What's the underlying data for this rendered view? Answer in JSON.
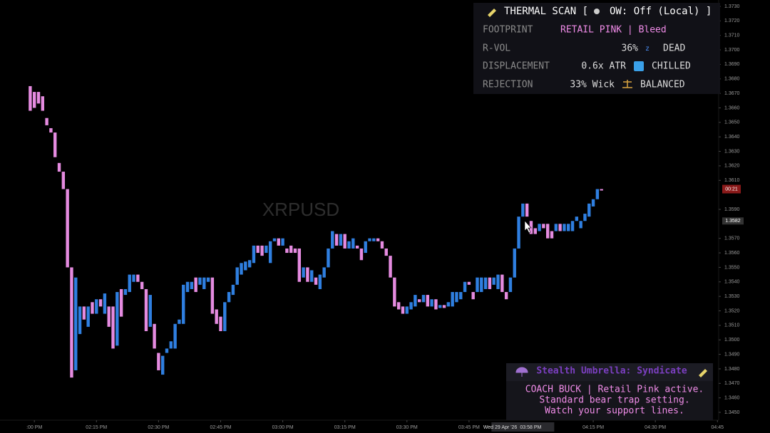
{
  "chart_data": {
    "type": "candlestick",
    "watermark": "XRPUSD",
    "up_color": "#2f7fe0",
    "down_color": "#e58be0",
    "x": [
      -1,
      0,
      1,
      2,
      3,
      4,
      5,
      6,
      7,
      8,
      9,
      10,
      11,
      12,
      13,
      14,
      15,
      16,
      17,
      18,
      19,
      20,
      21,
      22,
      23,
      24,
      25,
      26,
      27,
      28,
      29,
      30,
      31,
      32,
      33,
      34,
      35,
      36,
      37,
      38,
      39,
      40,
      41,
      42,
      43,
      44,
      45,
      46,
      47,
      48,
      49,
      50,
      51,
      52,
      53,
      54,
      55,
      56,
      57,
      58,
      59,
      60,
      61,
      62,
      63,
      64,
      65,
      66,
      67,
      68,
      69,
      70,
      71,
      72,
      73,
      74,
      75,
      76,
      77,
      78,
      79,
      80,
      81,
      82,
      83,
      84,
      85,
      86,
      87,
      88,
      89,
      90,
      91,
      92,
      93,
      94,
      95,
      96,
      97,
      98,
      99,
      100,
      101,
      102,
      103,
      104,
      105,
      106,
      107,
      108,
      109,
      110,
      111,
      112,
      113,
      114,
      115,
      116,
      117,
      118,
      119,
      120,
      121,
      122,
      123,
      124,
      125,
      126,
      127,
      128,
      129,
      130,
      131,
      132,
      133,
      134,
      135,
      136,
      137
    ],
    "open": [
      1.3675,
      1.3671,
      1.3671,
      1.3668,
      1.3653,
      1.3646,
      1.3643,
      1.3622,
      1.3616,
      1.3604,
      1.355,
      1.3479,
      1.3504,
      1.3523,
      1.3509,
      1.3526,
      1.3518,
      1.3528,
      1.3518,
      1.3523,
      1.3523,
      1.3496,
      1.3535,
      1.3531,
      1.3533,
      1.354,
      1.3545,
      1.354,
      1.3535,
      1.3509,
      1.3511,
      1.3491,
      1.3476,
      1.3491,
      1.3494,
      1.3494,
      1.3511,
      1.3511,
      1.3533,
      1.3535,
      1.3543,
      1.3538,
      1.3535,
      1.354,
      1.3543,
      1.3521,
      1.3516,
      1.3506,
      1.3526,
      1.3531,
      1.3538,
      1.3545,
      1.3548,
      1.355,
      1.3553,
      1.3565,
      1.3565,
      1.356,
      1.3553,
      1.3568,
      1.357,
      1.3565,
      1.3563,
      1.3565,
      1.3563,
      1.3563,
      1.3543,
      1.355,
      1.354,
      1.3543,
      1.3535,
      1.3543,
      1.355,
      1.3563,
      1.3573,
      1.3565,
      1.3573,
      1.3563,
      1.3563,
      1.3565,
      1.3563,
      1.356,
      1.3568,
      1.3568,
      1.357,
      1.3568,
      1.3563,
      1.3558,
      1.3543,
      1.3526,
      1.3523,
      1.3518,
      1.3521,
      1.3523,
      1.3528,
      1.3526,
      1.3531,
      1.3523,
      1.3528,
      1.3522,
      1.3524,
      1.3523,
      1.3523,
      1.3526,
      1.3528,
      1.3533,
      1.354,
      1.3533,
      1.3533,
      1.3533,
      1.3535,
      1.3543,
      1.3538,
      1.3535,
      1.3545,
      1.3533,
      1.3533,
      1.3543,
      1.3563,
      1.3585,
      1.3594,
      1.3582,
      1.3577,
      1.3575,
      1.358,
      1.358,
      1.3575,
      1.3575,
      1.358,
      1.3575,
      1.3575,
      1.3575,
      1.3582,
      1.3577,
      1.3582,
      1.3585,
      1.3592,
      1.3597,
      1.3604
    ],
    "close": [
      1.3658,
      1.366,
      1.3663,
      1.3658,
      1.3648,
      1.3643,
      1.3626,
      1.3616,
      1.3604,
      1.355,
      1.3474,
      1.3543,
      1.3523,
      1.3514,
      1.3523,
      1.3518,
      1.3528,
      1.3523,
      1.3532,
      1.3509,
      1.3494,
      1.3533,
      1.3516,
      1.3535,
      1.3545,
      1.3545,
      1.354,
      1.3535,
      1.3506,
      1.3531,
      1.3494,
      1.3479,
      1.3489,
      1.3494,
      1.3499,
      1.3511,
      1.3514,
      1.3538,
      1.354,
      1.354,
      1.3533,
      1.3543,
      1.3543,
      1.3543,
      1.3518,
      1.3511,
      1.3506,
      1.3526,
      1.3533,
      1.3538,
      1.355,
      1.3553,
      1.3554,
      1.3555,
      1.3565,
      1.356,
      1.3558,
      1.3565,
      1.3568,
      1.357,
      1.3565,
      1.357,
      1.356,
      1.356,
      1.356,
      1.354,
      1.355,
      1.354,
      1.3548,
      1.3538,
      1.3545,
      1.355,
      1.3563,
      1.3575,
      1.3565,
      1.3573,
      1.3563,
      1.3568,
      1.357,
      1.3563,
      1.3555,
      1.3568,
      1.357,
      1.357,
      1.3568,
      1.3563,
      1.3558,
      1.3543,
      1.3523,
      1.3521,
      1.3518,
      1.3523,
      1.3526,
      1.3531,
      1.3526,
      1.3531,
      1.3523,
      1.3528,
      1.3521,
      1.3524,
      1.3522,
      1.3526,
      1.3533,
      1.3533,
      1.3533,
      1.354,
      1.3538,
      1.3528,
      1.3543,
      1.3543,
      1.3543,
      1.3535,
      1.3543,
      1.3545,
      1.3533,
      1.3528,
      1.3543,
      1.3563,
      1.3585,
      1.3594,
      1.3585,
      1.3573,
      1.3573,
      1.358,
      1.3577,
      1.357,
      1.357,
      1.358,
      1.3575,
      1.358,
      1.358,
      1.3582,
      1.3585,
      1.3582,
      1.3587,
      1.3594,
      1.3597,
      1.3604,
      1.3603
    ],
    "xlim": [
      -8.3,
      165.3
    ],
    "xticks": [
      {
        "value": 0,
        "label": ":00 PM"
      },
      {
        "value": 15,
        "label": "02:15 PM"
      },
      {
        "value": 30,
        "label": "02:30 PM"
      },
      {
        "value": 45,
        "label": "02:45 PM"
      },
      {
        "value": 60,
        "label": "03:00 PM"
      },
      {
        "value": 75,
        "label": "03:15 PM"
      },
      {
        "value": 90,
        "label": "03:30 PM"
      },
      {
        "value": 105,
        "label": "03:45 PM"
      },
      {
        "value": 135,
        "label": "04:15 PM"
      },
      {
        "value": 150,
        "label": "04:30 PM"
      },
      {
        "value": 165,
        "label": "04:45"
      }
    ],
    "ylim": [
      1.34446,
      1.37344
    ],
    "yticks": [
      {
        "value": 1.373,
        "label": "1.3730"
      },
      {
        "value": 1.372,
        "label": "1.3720"
      },
      {
        "value": 1.371,
        "label": "1.3710"
      },
      {
        "value": 1.37,
        "label": "1.3700"
      },
      {
        "value": 1.369,
        "label": "1.3690"
      },
      {
        "value": 1.368,
        "label": "1.3680"
      },
      {
        "value": 1.367,
        "label": "1.3670"
      },
      {
        "value": 1.366,
        "label": "1.3660"
      },
      {
        "value": 1.365,
        "label": "1.3650"
      },
      {
        "value": 1.364,
        "label": "1.3640"
      },
      {
        "value": 1.363,
        "label": "1.3630"
      },
      {
        "value": 1.362,
        "label": "1.3620"
      },
      {
        "value": 1.361,
        "label": "1.3610"
      },
      {
        "value": 1.359,
        "label": "1.3590"
      },
      {
        "value": 1.357,
        "label": "1.3570"
      },
      {
        "value": 1.356,
        "label": "1.3560"
      },
      {
        "value": 1.355,
        "label": "1.3550"
      },
      {
        "value": 1.354,
        "label": "1.3540"
      },
      {
        "value": 1.353,
        "label": "1.3530"
      },
      {
        "value": 1.352,
        "label": "1.3520"
      },
      {
        "value": 1.351,
        "label": "1.3510"
      },
      {
        "value": 1.35,
        "label": "1.3500"
      },
      {
        "value": 1.349,
        "label": "1.3490"
      },
      {
        "value": 1.348,
        "label": "1.3480"
      },
      {
        "value": 1.347,
        "label": "1.3470"
      },
      {
        "value": 1.346,
        "label": "1.3460"
      },
      {
        "value": 1.345,
        "label": "1.3450"
      }
    ],
    "price_label": 1.3582,
    "countdown": "00:21",
    "countdown_price": 1.3603,
    "crosshair_label": "Wed 29 Apr '26",
    "crosshair_time": "03:58 PM",
    "crosshair_x": 118
  },
  "panel": {
    "title": "THERMAL SCAN [",
    "mode": "OW: Off (Local) ]",
    "rows": [
      {
        "label": "FOOTPRINT",
        "value": "RETAIL PINK | Bleed"
      },
      {
        "label": "R-VOL",
        "value": "36%",
        "status": "DEAD"
      },
      {
        "label": "DISPLACEMENT",
        "value": "0.6x ATR",
        "status": "CHILLED"
      },
      {
        "label": "REJECTION",
        "value": "33% Wick",
        "status": "BALANCED"
      }
    ]
  },
  "coach": {
    "title": "Stealth Umbrella: Syndicate",
    "lines": [
      "COACH BUCK | Retail Pink active.",
      "Standard bear trap setting.",
      "Watch your support lines."
    ]
  }
}
